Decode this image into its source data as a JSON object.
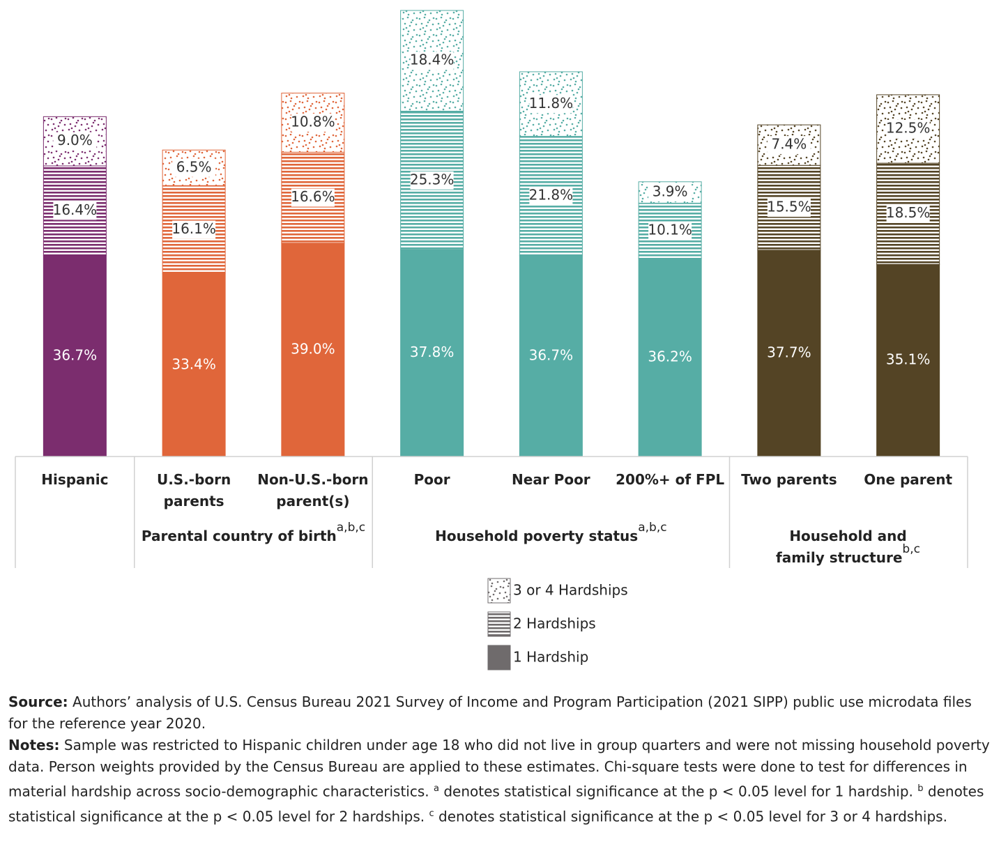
{
  "chart_data": {
    "type": "stacked_bar",
    "categories": [
      "Hispanic",
      "U.S.-born parents",
      "Non-U.S.-born parent(s)",
      "Poor",
      "Near Poor",
      "200%+ of FPL",
      "Two parents",
      "One parent"
    ],
    "category_colors": [
      "#7b2d6e",
      "#e0663a",
      "#e0663a",
      "#56ada5",
      "#56ada5",
      "#56ada5",
      "#544425",
      "#544425"
    ],
    "groups": [
      {
        "label": "Parental country of birth",
        "sup": "a,b,c"
      },
      {
        "label": "Household poverty status",
        "sup": "a,b,c"
      },
      {
        "label": "Household and family structure",
        "sup": "b,c"
      }
    ],
    "series": [
      {
        "name": "1 Hardship",
        "color": "#6f6b6c",
        "values": [
          36.7,
          33.4,
          39.0,
          37.8,
          36.7,
          36.2,
          37.7,
          35.1
        ],
        "value_labels": [
          "36.7%",
          "33.4%",
          "39.0%",
          "37.8%",
          "36.7%",
          "36.2%",
          "37.7%",
          "35.1%"
        ]
      },
      {
        "name": "2 Hardships",
        "color": "#6f6b6c",
        "values": [
          16.4,
          16.1,
          16.6,
          25.3,
          21.8,
          10.1,
          15.5,
          18.5
        ],
        "value_labels": [
          "16.4%",
          "16.1%",
          "16.6%",
          "25.3%",
          "21.8%",
          "10.1%",
          "15.5%",
          "18.5%"
        ]
      },
      {
        "name": "3 or 4 Hardships",
        "color": "#6f6b6c",
        "values": [
          9.0,
          6.5,
          10.8,
          18.4,
          11.8,
          3.9,
          7.4,
          12.5
        ],
        "value_labels": [
          "9.0%",
          "6.5%",
          "10.8%",
          "18.4%",
          "11.8%",
          "3.9%",
          "7.4%",
          "12.5%"
        ]
      }
    ],
    "source_label": "Source:",
    "source": "Authors’ analysis of U.S. Census Bureau 2021 Survey of Income and Program Participation (2021 SIPP) public use microdata files for the reference year 2020.",
    "notes_label": "Notes:",
    "notes_text": [
      "Sample was restricted to Hispanic children under age 18 who did not live in group quarters and were not missing household poverty data. Person weights provided by the Census Bureau are applied to these estimates. Chi-square tests were done to test for differences in material hardship across socio-demographic characteristics. ",
      " denotes statistical significance at the p < 0.05 level for 1 hardship. ",
      " denotes statistical significance at the p < 0.05 level for 2 hardships. ",
      " denotes statistical significance at the p < 0.05 level for 3 or 4 hardships."
    ],
    "notes_sup": [
      "a",
      "b",
      "c"
    ]
  }
}
